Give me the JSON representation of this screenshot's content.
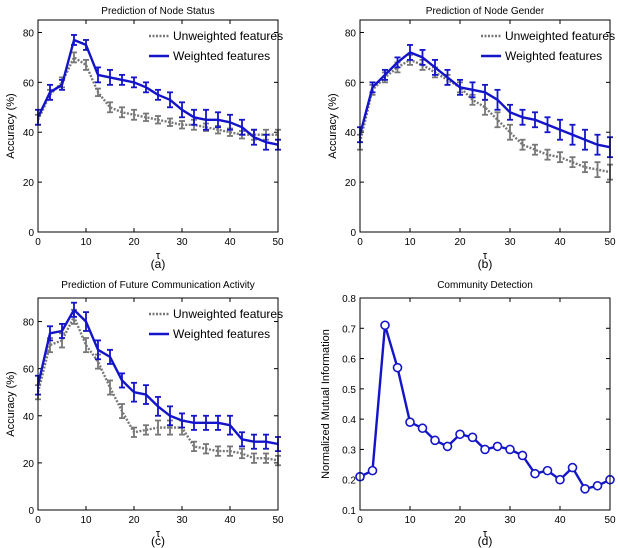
{
  "chart_data": [
    {
      "type": "line",
      "title": "Prediction of Node Status",
      "xlabel": "τ",
      "ylabel": "Accuracy (%)",
      "caption": "(a)",
      "xlim": [
        0,
        50
      ],
      "ylim": [
        0,
        85
      ],
      "xticks": [
        0,
        10,
        20,
        30,
        40,
        50
      ],
      "yticks": [
        0,
        20,
        40,
        60,
        80
      ],
      "legend_position": "top-right",
      "series": [
        {
          "name": "Unweighted features",
          "color": "#777777",
          "style": "dotted",
          "x": [
            0,
            2.5,
            5,
            7.5,
            10,
            12.5,
            15,
            17.5,
            20,
            22.5,
            25,
            27.5,
            30,
            32.5,
            35,
            37.5,
            40,
            42.5,
            45,
            47.5,
            50
          ],
          "y": [
            45,
            55,
            60,
            70,
            67,
            56,
            50,
            48,
            47,
            46,
            45,
            44,
            43,
            43,
            42,
            41,
            40,
            39,
            39,
            39,
            39
          ],
          "err": [
            2,
            2,
            2,
            2,
            2,
            1.5,
            2,
            2,
            2,
            1.5,
            1.5,
            1.5,
            1.5,
            2,
            1.5,
            1.5,
            1.5,
            1.5,
            2,
            2,
            2
          ]
        },
        {
          "name": "Weighted features",
          "color": "#1414c8",
          "style": "solid",
          "x": [
            0,
            2.5,
            5,
            7.5,
            10,
            12.5,
            15,
            17.5,
            20,
            22.5,
            25,
            27.5,
            30,
            32.5,
            35,
            37.5,
            40,
            42.5,
            45,
            47.5,
            50
          ],
          "y": [
            46,
            56,
            59,
            77,
            75,
            63,
            62,
            61,
            60,
            58,
            55,
            53,
            49,
            46,
            45,
            45,
            44,
            42,
            38,
            36,
            35
          ],
          "err": [
            3,
            3,
            2,
            2,
            2,
            3,
            3,
            2,
            2,
            2,
            2,
            3,
            3,
            3,
            4,
            3,
            3,
            3,
            3,
            3,
            2
          ]
        }
      ]
    },
    {
      "type": "line",
      "title": "Prediction of Node Gender",
      "xlabel": "τ",
      "ylabel": "Accuracy (%)",
      "caption": "(b)",
      "xlim": [
        0,
        50
      ],
      "ylim": [
        0,
        85
      ],
      "xticks": [
        0,
        10,
        20,
        30,
        40,
        50
      ],
      "yticks": [
        0,
        20,
        40,
        60,
        80
      ],
      "legend_position": "top-right",
      "series": [
        {
          "name": "Unweighted features",
          "color": "#777777",
          "style": "dotted",
          "x": [
            0,
            2.5,
            5,
            7.5,
            10,
            12.5,
            15,
            17.5,
            20,
            22.5,
            25,
            27.5,
            30,
            32.5,
            35,
            37.5,
            40,
            42.5,
            45,
            47.5,
            50
          ],
          "y": [
            36,
            57,
            62,
            66,
            69,
            67,
            64,
            61,
            58,
            53,
            50,
            45,
            40,
            35,
            33,
            31,
            30,
            28,
            26,
            25,
            24
          ],
          "err": [
            3,
            2,
            2,
            2,
            2,
            2,
            2,
            2,
            2,
            2,
            3,
            3,
            3,
            2,
            2,
            2,
            2,
            2,
            2,
            3,
            3
          ]
        },
        {
          "name": "Weighted features",
          "color": "#1414c8",
          "style": "solid",
          "x": [
            0,
            2.5,
            5,
            7.5,
            10,
            12.5,
            15,
            17.5,
            20,
            22.5,
            25,
            27.5,
            30,
            32.5,
            35,
            37.5,
            40,
            42.5,
            45,
            47.5,
            50
          ],
          "y": [
            39,
            58,
            63,
            68,
            72,
            70,
            66,
            62,
            58,
            57,
            56,
            53,
            48,
            46,
            45,
            43,
            41,
            39,
            37,
            35,
            34
          ],
          "err": [
            3,
            2,
            2,
            2,
            3,
            3,
            3,
            3,
            3,
            3,
            3,
            4,
            3,
            3,
            3,
            3,
            4,
            4,
            4,
            4,
            4
          ]
        }
      ]
    },
    {
      "type": "line",
      "title": "Prediction of Future Communication Activity",
      "xlabel": "τ",
      "ylabel": "Accuracy (%)",
      "caption": "(c)",
      "xlim": [
        0,
        50
      ],
      "ylim": [
        0,
        90
      ],
      "xticks": [
        0,
        10,
        20,
        30,
        40,
        50
      ],
      "yticks": [
        0,
        20,
        40,
        60,
        80
      ],
      "legend_position": "top-right",
      "series": [
        {
          "name": "Unweighted features",
          "color": "#777777",
          "style": "dotted",
          "x": [
            0,
            2.5,
            5,
            7.5,
            10,
            12.5,
            15,
            17.5,
            20,
            22.5,
            25,
            27.5,
            30,
            32.5,
            35,
            37.5,
            40,
            42.5,
            45,
            47.5,
            50
          ],
          "y": [
            50,
            70,
            72,
            82,
            70,
            63,
            52,
            42,
            33,
            34,
            35,
            35,
            35,
            27,
            26,
            25,
            25,
            24,
            22,
            22,
            21
          ],
          "err": [
            3,
            3,
            3,
            3,
            3,
            3,
            3,
            3,
            2,
            2,
            3,
            3,
            3,
            2,
            2,
            2,
            2,
            2,
            2,
            2,
            2
          ]
        },
        {
          "name": "Weighted features",
          "color": "#1414c8",
          "style": "solid",
          "x": [
            0,
            2.5,
            5,
            7.5,
            10,
            12.5,
            15,
            17.5,
            20,
            22.5,
            25,
            27.5,
            30,
            32.5,
            35,
            37.5,
            40,
            42.5,
            45,
            47.5,
            50
          ],
          "y": [
            53,
            75,
            76,
            85,
            80,
            68,
            65,
            55,
            50,
            49,
            44,
            40,
            38,
            37,
            37,
            37,
            36,
            30,
            29,
            29,
            28
          ],
          "err": [
            4,
            3,
            3,
            3,
            4,
            4,
            3,
            3,
            4,
            4,
            4,
            4,
            3,
            3,
            3,
            3,
            4,
            3,
            3,
            3,
            3
          ]
        }
      ]
    },
    {
      "type": "line",
      "title": "Community Detection",
      "xlabel": "τ",
      "ylabel": "Normalized Mutual Information",
      "caption": "(d)",
      "xlim": [
        0,
        50
      ],
      "ylim": [
        0.1,
        0.8
      ],
      "xticks": [
        0,
        10,
        20,
        30,
        40,
        50
      ],
      "yticks": [
        0.1,
        0.2,
        0.3,
        0.4,
        0.5,
        0.6,
        0.7,
        0.8
      ],
      "series": [
        {
          "name": "",
          "color": "#1414c8",
          "style": "solid",
          "marker": "circle",
          "x": [
            0,
            2.5,
            5,
            7.5,
            10,
            12.5,
            15,
            17.5,
            20,
            22.5,
            25,
            27.5,
            30,
            32.5,
            35,
            37.5,
            40,
            42.5,
            45,
            47.5,
            50
          ],
          "y": [
            0.21,
            0.23,
            0.71,
            0.57,
            0.39,
            0.37,
            0.33,
            0.31,
            0.35,
            0.34,
            0.3,
            0.31,
            0.3,
            0.28,
            0.22,
            0.23,
            0.2,
            0.24,
            0.17,
            0.18,
            0.2
          ]
        }
      ]
    }
  ]
}
